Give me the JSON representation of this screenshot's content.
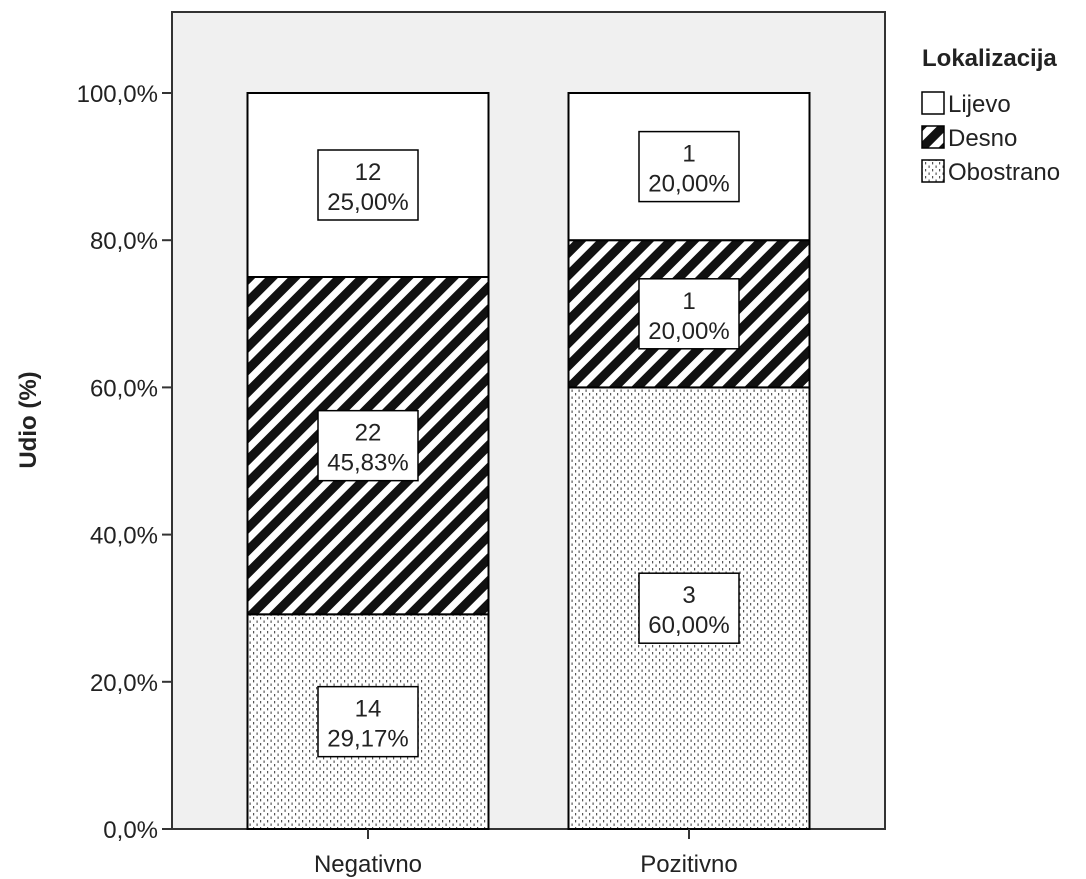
{
  "chart_data": {
    "type": "bar",
    "stacked": true,
    "xlabel": "",
    "ylabel": "Udio (%)",
    "ylim": [
      0,
      100
    ],
    "yticks": [
      "0,0%",
      "20,0%",
      "40,0%",
      "60,0%",
      "80,0%",
      "100,0%"
    ],
    "categories": [
      "Negativno",
      "Pozitivno"
    ],
    "legend": {
      "title": "Lokalizacija",
      "position": "right"
    },
    "series": [
      {
        "name": "Obostrano",
        "pattern": "dots",
        "values": [
          29.17,
          60.0
        ],
        "counts": [
          "14",
          "3"
        ],
        "labels": [
          "29,17%",
          "60,00%"
        ]
      },
      {
        "name": "Desno",
        "pattern": "diagonal-hatch",
        "values": [
          45.83,
          20.0
        ],
        "counts": [
          "22",
          "1"
        ],
        "labels": [
          "45,83%",
          "20,00%"
        ]
      },
      {
        "name": "Lijevo",
        "pattern": "white",
        "values": [
          25.0,
          20.0
        ],
        "counts": [
          "12",
          "1"
        ],
        "labels": [
          "25,00%",
          "20,00%"
        ]
      }
    ],
    "colors": {
      "plot_background": "#f0f0f0",
      "bar_stroke": "#000000",
      "hatch": "#111111"
    }
  }
}
